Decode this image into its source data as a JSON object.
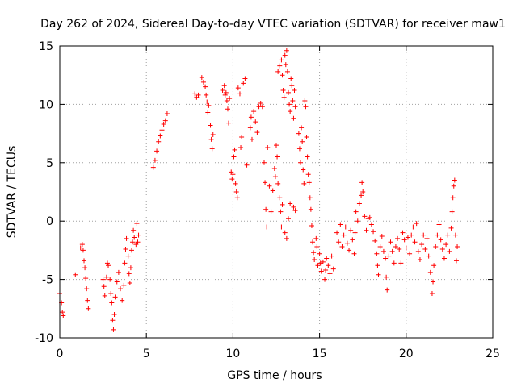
{
  "chart_data": {
    "type": "scatter",
    "title": "Day 262 of 2024, Sidereal Day-to-day VTEC variation (SDTVAR) for receiver maw1",
    "xlabel": "GPS time / hours",
    "ylabel": "SDTVAR / TECUs",
    "xlim": [
      0,
      25
    ],
    "ylim": [
      -10,
      15
    ],
    "x_ticks": [
      0,
      5,
      10,
      15,
      20,
      25
    ],
    "x_tick_labels": [
      "0",
      "5",
      "10",
      "15",
      "20",
      "25"
    ],
    "y_ticks": [
      -10,
      -5,
      0,
      5,
      10,
      15
    ],
    "y_tick_labels": [
      "-10",
      "-5",
      "0",
      "5",
      "10",
      "15"
    ],
    "grid": true,
    "marker": "+",
    "color": "#ff0000",
    "series": [
      {
        "name": "SDTVAR",
        "points": [
          [
            0.0,
            -6.2
          ],
          [
            0.1,
            -7.0
          ],
          [
            0.15,
            -7.8
          ],
          [
            0.2,
            -8.1
          ],
          [
            0.9,
            -4.6
          ],
          [
            1.2,
            -2.3
          ],
          [
            1.3,
            -2.0
          ],
          [
            1.35,
            -2.5
          ],
          [
            1.4,
            -3.4
          ],
          [
            1.45,
            -4.0
          ],
          [
            1.5,
            -4.9
          ],
          [
            1.55,
            -5.8
          ],
          [
            1.6,
            -6.8
          ],
          [
            1.65,
            -7.5
          ],
          [
            2.5,
            -5.0
          ],
          [
            2.55,
            -5.6
          ],
          [
            2.6,
            -6.4
          ],
          [
            2.7,
            -4.8
          ],
          [
            2.75,
            -3.6
          ],
          [
            2.8,
            -3.8
          ],
          [
            2.9,
            -5.0
          ],
          [
            2.95,
            -6.2
          ],
          [
            3.0,
            -7.0
          ],
          [
            3.05,
            -8.5
          ],
          [
            3.1,
            -9.3
          ],
          [
            3.15,
            -8.0
          ],
          [
            3.2,
            -6.5
          ],
          [
            3.3,
            -5.2
          ],
          [
            3.4,
            -4.4
          ],
          [
            3.5,
            -5.8
          ],
          [
            3.6,
            -6.8
          ],
          [
            3.7,
            -5.5
          ],
          [
            3.75,
            -3.6
          ],
          [
            3.8,
            -2.4
          ],
          [
            3.85,
            -1.5
          ],
          [
            3.95,
            -3.0
          ],
          [
            4.0,
            -4.5
          ],
          [
            4.05,
            -5.3
          ],
          [
            4.1,
            -4.0
          ],
          [
            4.15,
            -2.5
          ],
          [
            4.2,
            -1.8
          ],
          [
            4.25,
            -0.8
          ],
          [
            4.3,
            -1.4
          ],
          [
            4.4,
            -2.0
          ],
          [
            4.45,
            -0.2
          ],
          [
            4.5,
            -1.8
          ],
          [
            4.55,
            -1.2
          ],
          [
            5.4,
            4.6
          ],
          [
            5.5,
            5.2
          ],
          [
            5.6,
            6.0
          ],
          [
            5.7,
            6.8
          ],
          [
            5.8,
            7.3
          ],
          [
            5.9,
            7.8
          ],
          [
            6.0,
            8.3
          ],
          [
            6.1,
            8.6
          ],
          [
            6.2,
            9.2
          ],
          [
            7.8,
            10.9
          ],
          [
            7.9,
            10.6
          ],
          [
            8.0,
            10.8
          ],
          [
            8.2,
            12.3
          ],
          [
            8.3,
            11.9
          ],
          [
            8.4,
            11.5
          ],
          [
            8.45,
            10.8
          ],
          [
            8.5,
            10.2
          ],
          [
            8.55,
            9.3
          ],
          [
            8.6,
            9.9
          ],
          [
            8.7,
            8.2
          ],
          [
            8.75,
            7.0
          ],
          [
            8.8,
            6.2
          ],
          [
            8.85,
            7.4
          ],
          [
            9.4,
            11.2
          ],
          [
            9.5,
            11.6
          ],
          [
            9.55,
            10.8
          ],
          [
            9.6,
            11.0
          ],
          [
            9.65,
            10.3
          ],
          [
            9.7,
            9.6
          ],
          [
            9.75,
            8.4
          ],
          [
            9.8,
            10.5
          ],
          [
            9.9,
            4.2
          ],
          [
            9.95,
            3.6
          ],
          [
            10.0,
            4.0
          ],
          [
            10.05,
            5.5
          ],
          [
            10.1,
            6.1
          ],
          [
            10.15,
            3.2
          ],
          [
            10.2,
            2.5
          ],
          [
            10.25,
            2.0
          ],
          [
            10.3,
            11.4
          ],
          [
            10.4,
            10.9
          ],
          [
            10.45,
            6.3
          ],
          [
            10.5,
            7.2
          ],
          [
            10.6,
            11.8
          ],
          [
            10.7,
            12.2
          ],
          [
            10.8,
            4.8
          ],
          [
            11.0,
            8.0
          ],
          [
            11.05,
            8.9
          ],
          [
            11.1,
            7.0
          ],
          [
            11.2,
            9.4
          ],
          [
            11.3,
            8.5
          ],
          [
            11.4,
            7.6
          ],
          [
            11.5,
            9.8
          ],
          [
            11.6,
            10.1
          ],
          [
            11.7,
            9.8
          ],
          [
            11.8,
            5.0
          ],
          [
            11.85,
            3.3
          ],
          [
            11.9,
            1.0
          ],
          [
            11.95,
            -0.5
          ],
          [
            12.0,
            6.3
          ],
          [
            12.1,
            3.0
          ],
          [
            12.2,
            0.8
          ],
          [
            12.3,
            2.6
          ],
          [
            12.4,
            4.5
          ],
          [
            12.45,
            3.8
          ],
          [
            12.5,
            6.5
          ],
          [
            12.55,
            5.5
          ],
          [
            12.6,
            3.2
          ],
          [
            12.7,
            2.0
          ],
          [
            12.75,
            0.8
          ],
          [
            12.8,
            -0.5
          ],
          [
            12.85,
            1.4
          ],
          [
            12.6,
            12.8
          ],
          [
            12.7,
            13.3
          ],
          [
            12.8,
            13.8
          ],
          [
            12.85,
            12.5
          ],
          [
            12.9,
            11.2
          ],
          [
            12.95,
            10.6
          ],
          [
            13.0,
            14.2
          ],
          [
            13.05,
            13.4
          ],
          [
            13.1,
            14.6
          ],
          [
            13.15,
            12.8
          ],
          [
            13.2,
            11.0
          ],
          [
            13.25,
            10.0
          ],
          [
            13.3,
            9.4
          ],
          [
            13.35,
            12.2
          ],
          [
            13.4,
            11.6
          ],
          [
            13.45,
            10.3
          ],
          [
            13.5,
            8.8
          ],
          [
            13.55,
            11.2
          ],
          [
            13.6,
            9.8
          ],
          [
            13.0,
            -1.0
          ],
          [
            13.1,
            -1.5
          ],
          [
            13.2,
            0.2
          ],
          [
            13.3,
            1.5
          ],
          [
            13.5,
            1.2
          ],
          [
            13.6,
            0.9
          ],
          [
            13.8,
            7.5
          ],
          [
            13.85,
            6.2
          ],
          [
            13.9,
            5.0
          ],
          [
            13.95,
            8.0
          ],
          [
            14.0,
            6.8
          ],
          [
            14.05,
            4.4
          ],
          [
            14.1,
            3.2
          ],
          [
            14.15,
            10.3
          ],
          [
            14.2,
            9.8
          ],
          [
            14.25,
            7.2
          ],
          [
            14.3,
            5.5
          ],
          [
            14.35,
            4.0
          ],
          [
            14.4,
            3.3
          ],
          [
            14.45,
            2.0
          ],
          [
            14.5,
            1.0
          ],
          [
            14.55,
            -0.4
          ],
          [
            14.6,
            -1.8
          ],
          [
            14.65,
            -2.7
          ],
          [
            14.7,
            -3.3
          ],
          [
            14.8,
            -1.5
          ],
          [
            14.85,
            -2.2
          ],
          [
            14.9,
            -3.8
          ],
          [
            15.0,
            -2.8
          ],
          [
            15.05,
            -3.6
          ],
          [
            15.1,
            -4.3
          ],
          [
            15.2,
            -3.5
          ],
          [
            15.3,
            -5.0
          ],
          [
            15.35,
            -4.2
          ],
          [
            15.4,
            -3.2
          ],
          [
            15.5,
            -3.8
          ],
          [
            15.6,
            -4.5
          ],
          [
            15.7,
            -3.0
          ],
          [
            15.8,
            -4.1
          ],
          [
            16.0,
            -1.0
          ],
          [
            16.1,
            -1.8
          ],
          [
            16.2,
            -0.3
          ],
          [
            16.3,
            -2.2
          ],
          [
            16.4,
            -1.2
          ],
          [
            16.5,
            -0.5
          ],
          [
            16.6,
            -1.9
          ],
          [
            16.7,
            -2.5
          ],
          [
            16.8,
            -0.8
          ],
          [
            16.9,
            -1.6
          ],
          [
            17.0,
            -2.8
          ],
          [
            17.05,
            -1.0
          ],
          [
            17.1,
            0.8
          ],
          [
            17.2,
            0.0
          ],
          [
            17.3,
            1.5
          ],
          [
            17.4,
            2.2
          ],
          [
            17.45,
            3.3
          ],
          [
            17.5,
            2.5
          ],
          [
            17.6,
            0.4
          ],
          [
            17.7,
            -0.8
          ],
          [
            17.8,
            0.2
          ],
          [
            17.9,
            0.3
          ],
          [
            18.0,
            -0.3
          ],
          [
            18.1,
            -0.9
          ],
          [
            18.2,
            -1.7
          ],
          [
            18.3,
            -2.8
          ],
          [
            18.35,
            -3.8
          ],
          [
            18.4,
            -4.6
          ],
          [
            18.5,
            -2.2
          ],
          [
            18.6,
            -1.3
          ],
          [
            18.7,
            -2.6
          ],
          [
            18.8,
            -3.2
          ],
          [
            18.85,
            -4.8
          ],
          [
            18.9,
            -5.9
          ],
          [
            19.0,
            -3.0
          ],
          [
            19.1,
            -1.8
          ],
          [
            19.2,
            -2.6
          ],
          [
            19.3,
            -3.6
          ],
          [
            19.4,
            -2.2
          ],
          [
            19.5,
            -1.5
          ],
          [
            19.6,
            -2.4
          ],
          [
            19.7,
            -3.6
          ],
          [
            19.8,
            -1.0
          ],
          [
            19.9,
            -1.6
          ],
          [
            20.0,
            -2.3
          ],
          [
            20.1,
            -1.4
          ],
          [
            20.2,
            -2.8
          ],
          [
            20.3,
            -1.2
          ],
          [
            20.4,
            -0.5
          ],
          [
            20.5,
            -1.8
          ],
          [
            20.6,
            -0.2
          ],
          [
            20.7,
            -2.6
          ],
          [
            20.8,
            -3.3
          ],
          [
            20.9,
            -2.0
          ],
          [
            21.0,
            -1.2
          ],
          [
            21.1,
            -2.4
          ],
          [
            21.2,
            -1.5
          ],
          [
            21.3,
            -3.0
          ],
          [
            21.4,
            -4.4
          ],
          [
            21.5,
            -6.2
          ],
          [
            21.55,
            -5.2
          ],
          [
            21.6,
            -3.8
          ],
          [
            21.7,
            -2.2
          ],
          [
            21.8,
            -1.2
          ],
          [
            21.9,
            -0.3
          ],
          [
            22.0,
            -1.6
          ],
          [
            22.1,
            -2.4
          ],
          [
            22.2,
            -3.2
          ],
          [
            22.3,
            -2.0
          ],
          [
            22.4,
            -1.2
          ],
          [
            22.5,
            -2.6
          ],
          [
            22.6,
            -0.6
          ],
          [
            22.65,
            0.8
          ],
          [
            22.7,
            2.0
          ],
          [
            22.75,
            3.0
          ],
          [
            22.8,
            3.5
          ],
          [
            22.85,
            -1.2
          ],
          [
            22.9,
            -3.4
          ],
          [
            22.95,
            -2.2
          ]
        ]
      }
    ]
  }
}
